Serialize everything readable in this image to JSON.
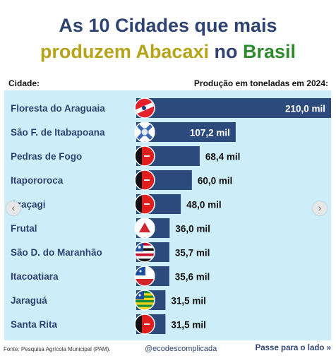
{
  "title": {
    "line1": "As 10 Cidades que mais",
    "line2_part1": "produzem Abacaxi",
    "line2_part2": "no",
    "line2_part3": "Brasil"
  },
  "column_headers": {
    "city": "Cidade:",
    "production": "Produção em toneladas em 2024:"
  },
  "footer": {
    "source": "Fonte: Pesquisa Agrícola Municipal (PAM).",
    "handle": "@ecodescomplicada",
    "next": "Passe para o lado",
    "next_icon": "double-chevron-right-icon"
  },
  "navigation": {
    "prev_icon": "chevron-left-icon",
    "next_icon": "chevron-right-icon"
  },
  "colors": {
    "panel": "#cdeef8",
    "bar": "#2d4a7c",
    "title_navy": "#2e4372",
    "title_yellow": "#b5a41a",
    "title_green": "#2e8a2e"
  },
  "chart_data": {
    "type": "bar",
    "orientation": "horizontal",
    "title": "As 10 Cidades que mais produzem Abacaxi no Brasil",
    "ylabel": "Cidade:",
    "xlabel": "Produção em toneladas em 2024:",
    "categories": [
      "Floresta do Araguaia",
      "São F. de Itabapoana",
      "Pedras de Fogo",
      "Itapororoca",
      "Araçagi",
      "Frutal",
      "São D. do Maranhão",
      "Itacoatiara",
      "Jaraguá",
      "Santa Rita"
    ],
    "values": [
      210.0,
      107.2,
      68.4,
      60.0,
      48.0,
      36.0,
      35.7,
      35.6,
      31.5,
      31.5
    ],
    "value_labels": [
      "210,0 mil",
      "107,2 mil",
      "68,4 mil",
      "60,0 mil",
      "48,0 mil",
      "36,0 mil",
      "35,7 mil",
      "35,6 mil",
      "31,5 mil",
      "31,5 mil"
    ],
    "flags": [
      "flag-para-icon",
      "flag-rio-de-janeiro-icon",
      "flag-paraiba-icon",
      "flag-paraiba-icon",
      "flag-paraiba-icon",
      "flag-minas-gerais-icon",
      "flag-maranhao-icon",
      "flag-amazonas-icon",
      "flag-goias-icon",
      "flag-paraiba-icon"
    ],
    "grid": false,
    "legend": "none"
  }
}
